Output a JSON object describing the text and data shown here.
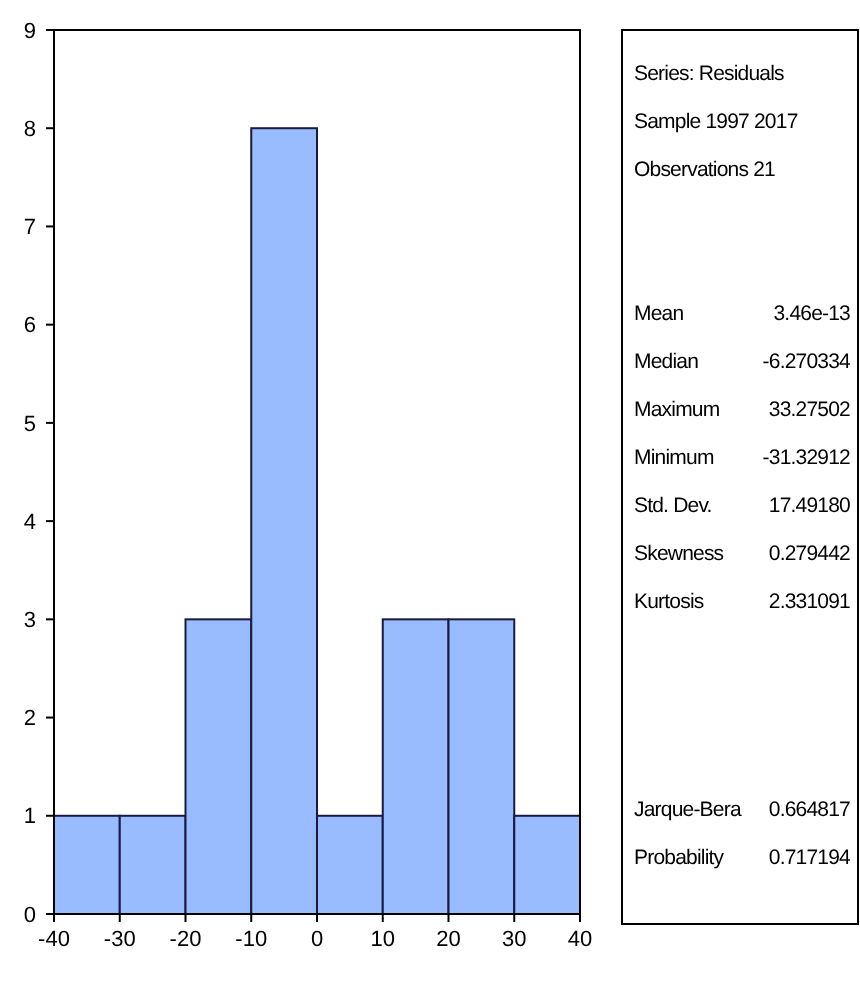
{
  "chart_data": {
    "type": "histogram",
    "bins": [
      -40,
      -30,
      -20,
      -10,
      0,
      10,
      20,
      30,
      40
    ],
    "values": [
      1,
      1,
      3,
      8,
      1,
      3,
      3,
      1
    ],
    "color": "#99bbff",
    "xlim": [
      -40,
      40
    ],
    "xticks": [
      -40,
      -30,
      -20,
      -10,
      0,
      10,
      20,
      30,
      40
    ],
    "ylim": [
      0,
      9
    ],
    "yticks": [
      0,
      1,
      2,
      3,
      4,
      5,
      6,
      7,
      8,
      9
    ],
    "grid": false,
    "annotations": [
      "Series: Residuals",
      "Sample 1997 2017",
      "Observations 21",
      "Mean",
      "3.46e-13",
      "Median",
      "-6.270334",
      "Maximum",
      "33.27502",
      "Minimum",
      "-31.32912",
      "Std. Dev.",
      "17.49180",
      "Skewness",
      "0.279442",
      "Kurtosis",
      "2.331091",
      "Jarque-Bera",
      "0.664817",
      "Probability",
      "0.717194"
    ]
  }
}
